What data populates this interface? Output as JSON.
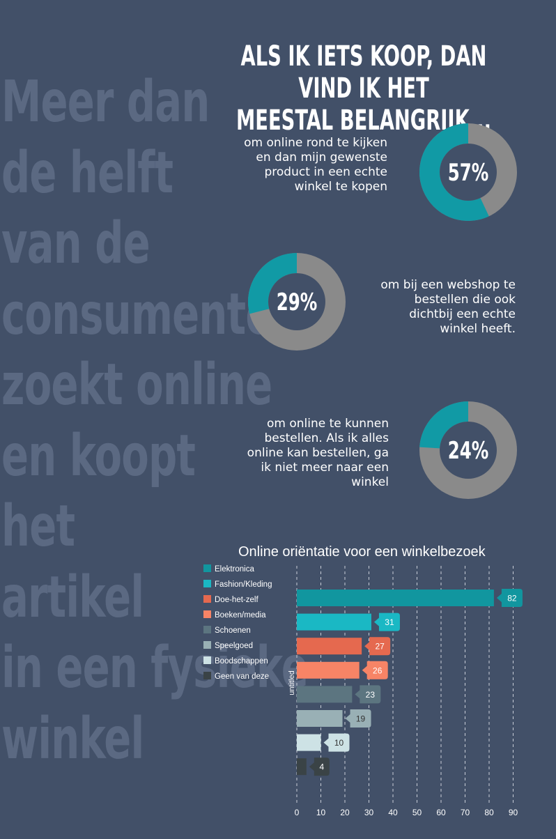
{
  "background_text": [
    "Meer dan",
    "de helft",
    "van de",
    "consumenten",
    "zoekt online",
    "en koopt",
    "het",
    "artikel",
    "in een fysieke",
    "winkel"
  ],
  "headline": [
    "ALS IK IETS KOOP, DAN VIND IK HET",
    "MEESTAL BELANGRIJK..."
  ],
  "stats": [
    {
      "value": 57,
      "label": "57%",
      "caption": [
        "om online rond te kijken",
        "en dan mijn gewenste",
        "product in een echte",
        "winkel te kopen"
      ]
    },
    {
      "value": 29,
      "label": "29%",
      "caption": [
        "om bij een webshop te",
        "bestellen die ook",
        "dichtbij een echte",
        "winkel heeft."
      ]
    },
    {
      "value": 24,
      "label": "24%",
      "caption": [
        "om online te kunnen",
        "bestellen. Als ik alles",
        "online kan bestellen, ga",
        "ik niet meer naar een",
        "winkel"
      ]
    }
  ],
  "colors": {
    "background": "#425068",
    "teal": "#119aa5",
    "grey": "#8a8a8a",
    "bg_text": "#5b6982"
  },
  "chart_data": {
    "type": "bar",
    "title": "Online oriëntatie voor een winkelbezoek",
    "ylabel": "untitled",
    "xlim": [
      0,
      90
    ],
    "xticks": [
      0,
      10,
      20,
      30,
      40,
      50,
      60,
      70,
      80,
      90
    ],
    "grid": true,
    "legend_position": "top-left",
    "series": [
      {
        "name": "Elektronica",
        "value": 82,
        "color": "#11969f"
      },
      {
        "name": "Fashion/Kleding",
        "value": 31,
        "color": "#1ab8c4"
      },
      {
        "name": "Doe-het-zelf",
        "value": 27,
        "color": "#e5694f"
      },
      {
        "name": "Boeken/media",
        "value": 26,
        "color": "#f78466"
      },
      {
        "name": "Schoenen",
        "value": 23,
        "color": "#5c7580"
      },
      {
        "name": "Speelgoed",
        "value": 19,
        "color": "#99b0b5"
      },
      {
        "name": "Boodschappen",
        "value": 10,
        "color": "#cde2e5"
      },
      {
        "name": "Geen van deze",
        "value": 4,
        "color": "#3a4346"
      }
    ]
  }
}
